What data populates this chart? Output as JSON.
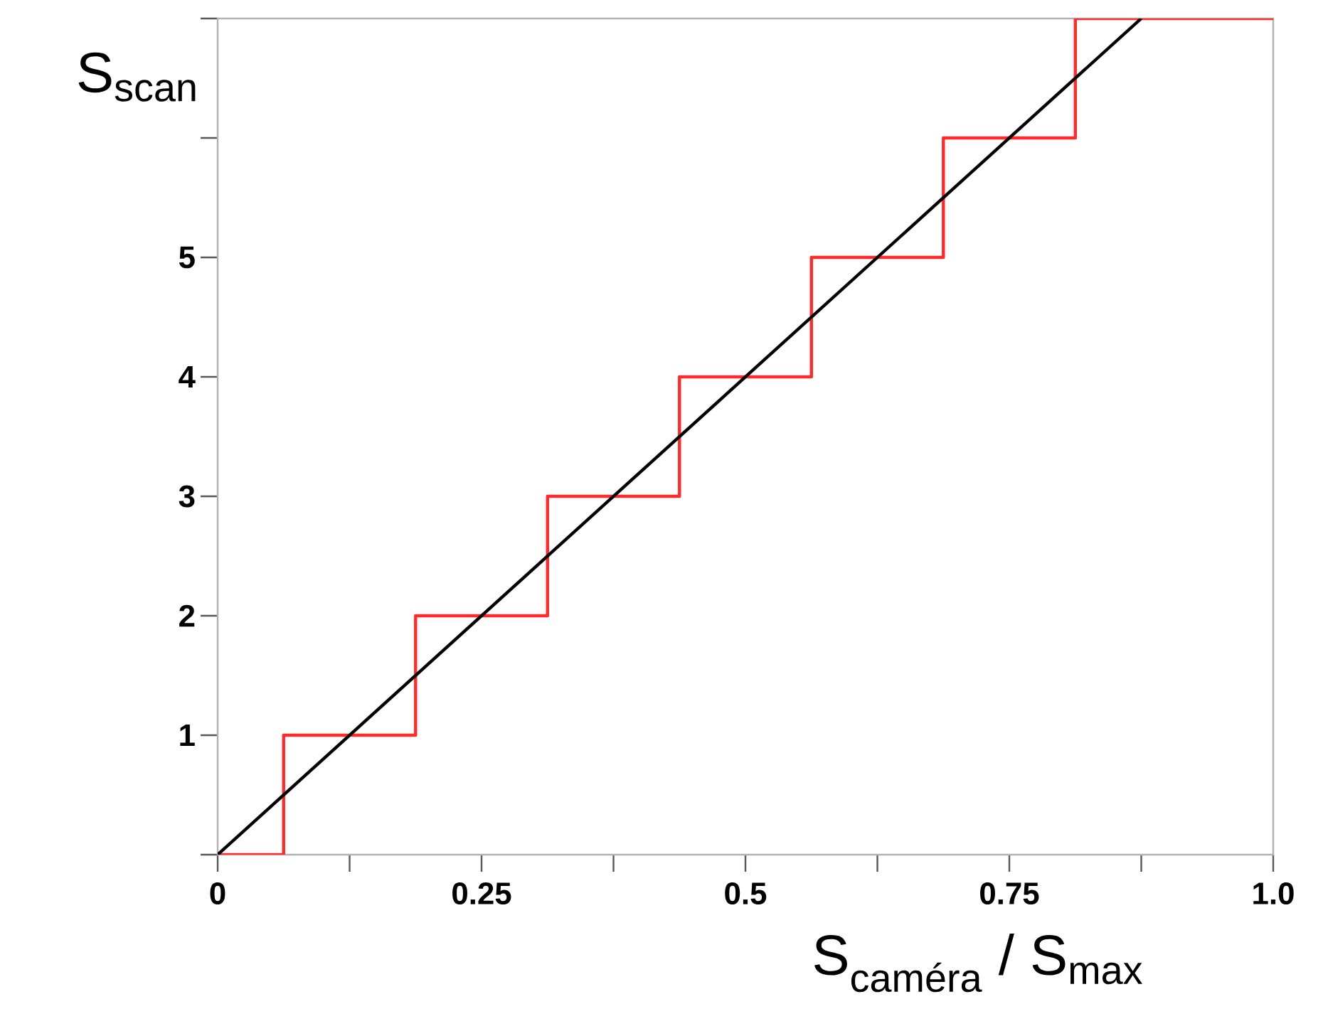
{
  "chart_data": {
    "type": "step",
    "xlabel": "S$_{caméra}$ / S$_{max}$",
    "ylabel": "S$_{scan}$",
    "xlim": [
      0,
      1.0
    ],
    "ylim": [
      0,
      7
    ],
    "xticks": [
      {
        "value": 0,
        "label": "0"
      },
      {
        "value": 0.125,
        "label": null
      },
      {
        "value": 0.25,
        "label": "0.25"
      },
      {
        "value": 0.375,
        "label": null
      },
      {
        "value": 0.5,
        "label": "0.5"
      },
      {
        "value": 0.625,
        "label": null
      },
      {
        "value": 0.75,
        "label": "0.75"
      },
      {
        "value": 0.875,
        "label": null
      },
      {
        "value": 1.0,
        "label": "1.0"
      }
    ],
    "yticks": [
      {
        "value": 0,
        "label": null
      },
      1,
      2,
      3,
      4,
      5,
      {
        "value": 6,
        "label": null
      },
      {
        "value": 7,
        "label": null
      }
    ],
    "series": [
      {
        "color": "#ff2a2a",
        "x": [
          0,
          0.0625,
          0.1875,
          0.3125,
          0.4375,
          0.5625,
          0.6875,
          0.8125,
          1.0
        ],
        "values": [
          0,
          1,
          2,
          3,
          4,
          5,
          6,
          7,
          7
        ]
      },
      {
        "type": "line",
        "color": "#000000",
        "x": [
          0,
          0.875
        ],
        "values": [
          0,
          7
        ]
      }
    ]
  }
}
